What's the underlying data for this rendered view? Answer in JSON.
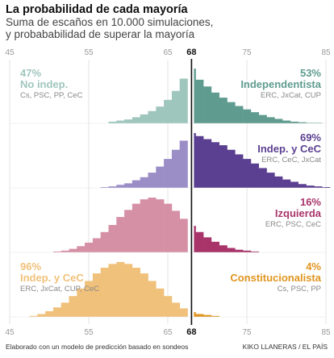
{
  "title": "La probabilidad de cada mayoría",
  "subtitle": [
    "Suma de escaños en 10.000 simulaciones,",
    "y probababilidad de superar la mayoría"
  ],
  "footer": {
    "left": "Elaborado con un modelo de predicción basado en sondeos",
    "right": "KIKO LLANERAS / EL PAÍS"
  },
  "chart_data": {
    "type": "bar",
    "xlim": [
      45,
      85
    ],
    "threshold": 68,
    "ticks": [
      45,
      55,
      65,
      68,
      75,
      85
    ],
    "panels": [
      {
        "color_left": "#9fc6bd",
        "color_right": "#5f9c8f",
        "label_left": {
          "pct": "47%",
          "name": "No indep.",
          "parties": "Cs, PSC, PP, CeC"
        },
        "label_right": {
          "pct": "53%",
          "name": "Independentista",
          "parties": "ERC, JxCat, CUP"
        },
        "x": [
          45,
          46,
          47,
          48,
          49,
          50,
          51,
          52,
          53,
          54,
          55,
          56,
          57,
          58,
          59,
          60,
          61,
          62,
          63,
          64,
          65,
          66,
          67,
          68,
          69,
          70,
          71,
          72,
          73,
          74,
          75,
          76,
          77,
          78,
          79,
          80,
          81,
          82,
          83,
          84,
          85
        ],
        "values": [
          0,
          0,
          0,
          0,
          0,
          0,
          0,
          0,
          0,
          0,
          0,
          0,
          0,
          0.03,
          0.05,
          0.07,
          0.11,
          0.16,
          0.22,
          0.3,
          0.42,
          0.58,
          0.8,
          0.98,
          0.78,
          0.66,
          0.55,
          0.46,
          0.38,
          0.31,
          0.25,
          0.2,
          0.15,
          0.11,
          0.08,
          0.05,
          0.03,
          0.02,
          0.01,
          0.01,
          0
        ]
      },
      {
        "color_left": "#9b8ec7",
        "color_right": "#5b3f90",
        "label_left": null,
        "label_right": {
          "pct": "69%",
          "name": "Indep. y CeC",
          "parties": "ERC, CeC, JxCat"
        },
        "x": [
          45,
          46,
          47,
          48,
          49,
          50,
          51,
          52,
          53,
          54,
          55,
          56,
          57,
          58,
          59,
          60,
          61,
          62,
          63,
          64,
          65,
          66,
          67,
          68,
          69,
          70,
          71,
          72,
          73,
          74,
          75,
          76,
          77,
          78,
          79,
          80,
          81,
          82,
          83,
          84,
          85
        ],
        "values": [
          0,
          0,
          0,
          0,
          0,
          0,
          0,
          0,
          0,
          0,
          0,
          0,
          0.01,
          0.02,
          0.04,
          0.06,
          0.1,
          0.14,
          0.2,
          0.28,
          0.38,
          0.5,
          0.62,
          0.72,
          0.68,
          0.64,
          0.6,
          0.56,
          0.5,
          0.44,
          0.38,
          0.32,
          0.26,
          0.2,
          0.15,
          0.11,
          0.08,
          0.05,
          0.03,
          0.02,
          0.01
        ]
      },
      {
        "color_left": "#d690a6",
        "color_right": "#a8346a",
        "label_left": null,
        "label_right": {
          "pct": "16%",
          "name": "Izquierda",
          "parties": "ERC, PSC, CeC"
        },
        "x": [
          45,
          46,
          47,
          48,
          49,
          50,
          51,
          52,
          53,
          54,
          55,
          56,
          57,
          58,
          59,
          60,
          61,
          62,
          63,
          64,
          65,
          66,
          67,
          68,
          69,
          70,
          71,
          72,
          73,
          74,
          75,
          76,
          77,
          78,
          79,
          80,
          81,
          82,
          83,
          84,
          85
        ],
        "values": [
          0,
          0,
          0,
          0,
          0,
          0,
          0.01,
          0.02,
          0.04,
          0.07,
          0.11,
          0.16,
          0.23,
          0.31,
          0.4,
          0.48,
          0.55,
          0.6,
          0.62,
          0.6,
          0.55,
          0.47,
          0.38,
          0.3,
          0.23,
          0.17,
          0.12,
          0.08,
          0.05,
          0.03,
          0.02,
          0.01,
          0,
          0,
          0,
          0,
          0,
          0,
          0,
          0,
          0
        ]
      },
      {
        "color_left": "#f0c17a",
        "color_right": "#e0951f",
        "label_left": {
          "pct": "96%",
          "name": "Indep. y CeC",
          "parties": "ERC, JxCat, CUP, CeC"
        },
        "label_right": {
          "pct": "4%",
          "name": "Constitucionalista",
          "parties": "Cs, PSC, PP"
        },
        "x": [
          45,
          46,
          47,
          48,
          49,
          50,
          51,
          52,
          53,
          54,
          55,
          56,
          57,
          58,
          59,
          60,
          61,
          62,
          63,
          64,
          65,
          66,
          67,
          68,
          69,
          70,
          71,
          72,
          73,
          74,
          75,
          76,
          77,
          78,
          79,
          80,
          81,
          82,
          83,
          84,
          85
        ],
        "values": [
          0,
          0,
          0,
          0.01,
          0.03,
          0.06,
          0.1,
          0.15,
          0.22,
          0.3,
          0.38,
          0.46,
          0.52,
          0.56,
          0.58,
          0.56,
          0.52,
          0.46,
          0.38,
          0.3,
          0.22,
          0.15,
          0.09,
          0.05,
          0.03,
          0.02,
          0.01,
          0,
          0,
          0,
          0,
          0,
          0,
          0,
          0,
          0,
          0,
          0,
          0,
          0,
          0
        ]
      }
    ]
  }
}
